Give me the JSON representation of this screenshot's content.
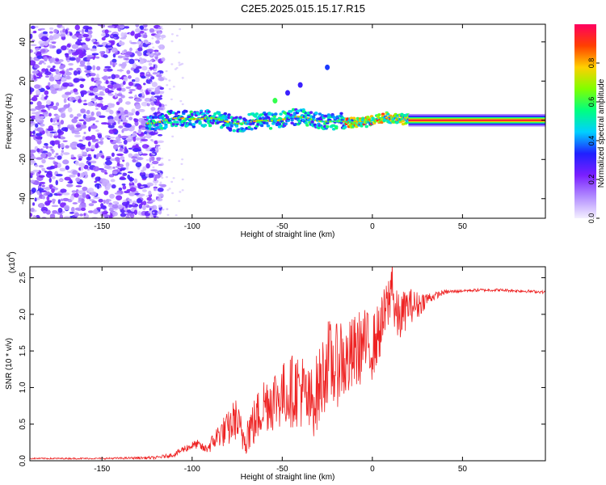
{
  "title": "C2E5.2025.015.15.17.R15",
  "chart_data": [
    {
      "type": "heatmap",
      "name": "spectrogram",
      "xlabel": "Height of straight line (km)",
      "ylabel": "Frequency (Hz)",
      "xlim": [
        -190,
        96
      ],
      "ylim": [
        -50,
        49
      ],
      "xticks": [
        -150,
        -100,
        -50,
        0,
        50
      ],
      "xtick_labels": [
        "-150",
        "-100",
        "-50",
        "0",
        "50"
      ],
      "yticks": [
        -40,
        -20,
        0,
        20,
        40
      ],
      "ytick_labels": [
        "-40",
        "-20",
        "0",
        "20",
        "40"
      ],
      "colorbar": {
        "label": "Normalized spectral amplitude",
        "range": [
          0,
          1
        ],
        "ticks": [
          0.0,
          0.2,
          0.4,
          0.6,
          0.8
        ],
        "tick_labels": [
          "0.0",
          "0.2",
          "0.4",
          "0.6",
          "0.8"
        ],
        "colors": [
          "#f4f0ff",
          "#b28cff",
          "#7a1fff",
          "#2020ff",
          "#00d0ff",
          "#00ff80",
          "#80ff00",
          "#ffd000",
          "#ff4000",
          "#ff0060"
        ]
      },
      "noise_region_x": [
        -190,
        -120
      ],
      "signal_band_center_freq": 0,
      "harmonic_points": [
        {
          "x": -54,
          "y": 10,
          "value": 0.6
        },
        {
          "x": -47,
          "y": 14,
          "value": 0.3
        },
        {
          "x": -40,
          "y": 18,
          "value": 0.3
        },
        {
          "x": -25,
          "y": 27,
          "value": 0.35
        }
      ]
    },
    {
      "type": "line",
      "name": "snr",
      "xlabel": "Height of straight line (km)",
      "ylabel": "SNR (10 * v/v)",
      "scale_note": "(x10",
      "scale_exp": "4",
      "scale_close": ")",
      "xlim": [
        -190,
        96
      ],
      "ylim": [
        0,
        2.65
      ],
      "xticks": [
        -150,
        -100,
        -50,
        0,
        50
      ],
      "xtick_labels": [
        "-150",
        "-100",
        "-50",
        "0",
        "50"
      ],
      "yticks": [
        0.0,
        0.5,
        1.0,
        1.5,
        2.0,
        2.5
      ],
      "ytick_labels": [
        "0.0",
        "0.5",
        "1.0",
        "1.5",
        "2.0",
        "2.5"
      ],
      "series": [
        {
          "name": "SNR",
          "color": "#ee2222",
          "x": [
            -190,
            -150,
            -120,
            -110,
            -105,
            -100,
            -97,
            -93,
            -90,
            -85,
            -80,
            -76,
            -72,
            -70,
            -65,
            -60,
            -55,
            -50,
            -45,
            -40,
            -35,
            -30,
            -25,
            -20,
            -18,
            -15,
            -10,
            -5,
            0,
            5,
            10,
            11,
            12,
            15,
            20,
            25,
            30,
            35,
            40,
            50,
            60,
            70,
            80,
            90,
            96
          ],
          "values": [
            0.03,
            0.03,
            0.04,
            0.08,
            0.15,
            0.2,
            0.22,
            0.15,
            0.2,
            0.35,
            0.4,
            0.55,
            0.3,
            0.35,
            0.5,
            0.75,
            0.8,
            0.85,
            0.9,
            0.95,
            0.7,
            0.9,
            1.3,
            1.2,
            1.4,
            1.25,
            1.4,
            1.55,
            1.5,
            1.8,
            2.2,
            2.62,
            2.0,
            1.9,
            2.1,
            2.1,
            2.2,
            2.25,
            2.3,
            2.32,
            2.33,
            2.33,
            2.32,
            2.31,
            2.3
          ],
          "noise_amplitude": [
            0.01,
            0.01,
            0.02,
            0.03,
            0.05,
            0.06,
            0.06,
            0.06,
            0.1,
            0.18,
            0.25,
            0.3,
            0.25,
            0.3,
            0.35,
            0.4,
            0.45,
            0.45,
            0.5,
            0.55,
            0.5,
            0.55,
            0.6,
            0.6,
            0.6,
            0.55,
            0.55,
            0.5,
            0.45,
            0.4,
            0.4,
            0.3,
            0.35,
            0.35,
            0.25,
            0.2,
            0.1,
            0.05,
            0.03,
            0.02,
            0.02,
            0.02,
            0.02,
            0.02,
            0.02
          ]
        }
      ]
    }
  ]
}
